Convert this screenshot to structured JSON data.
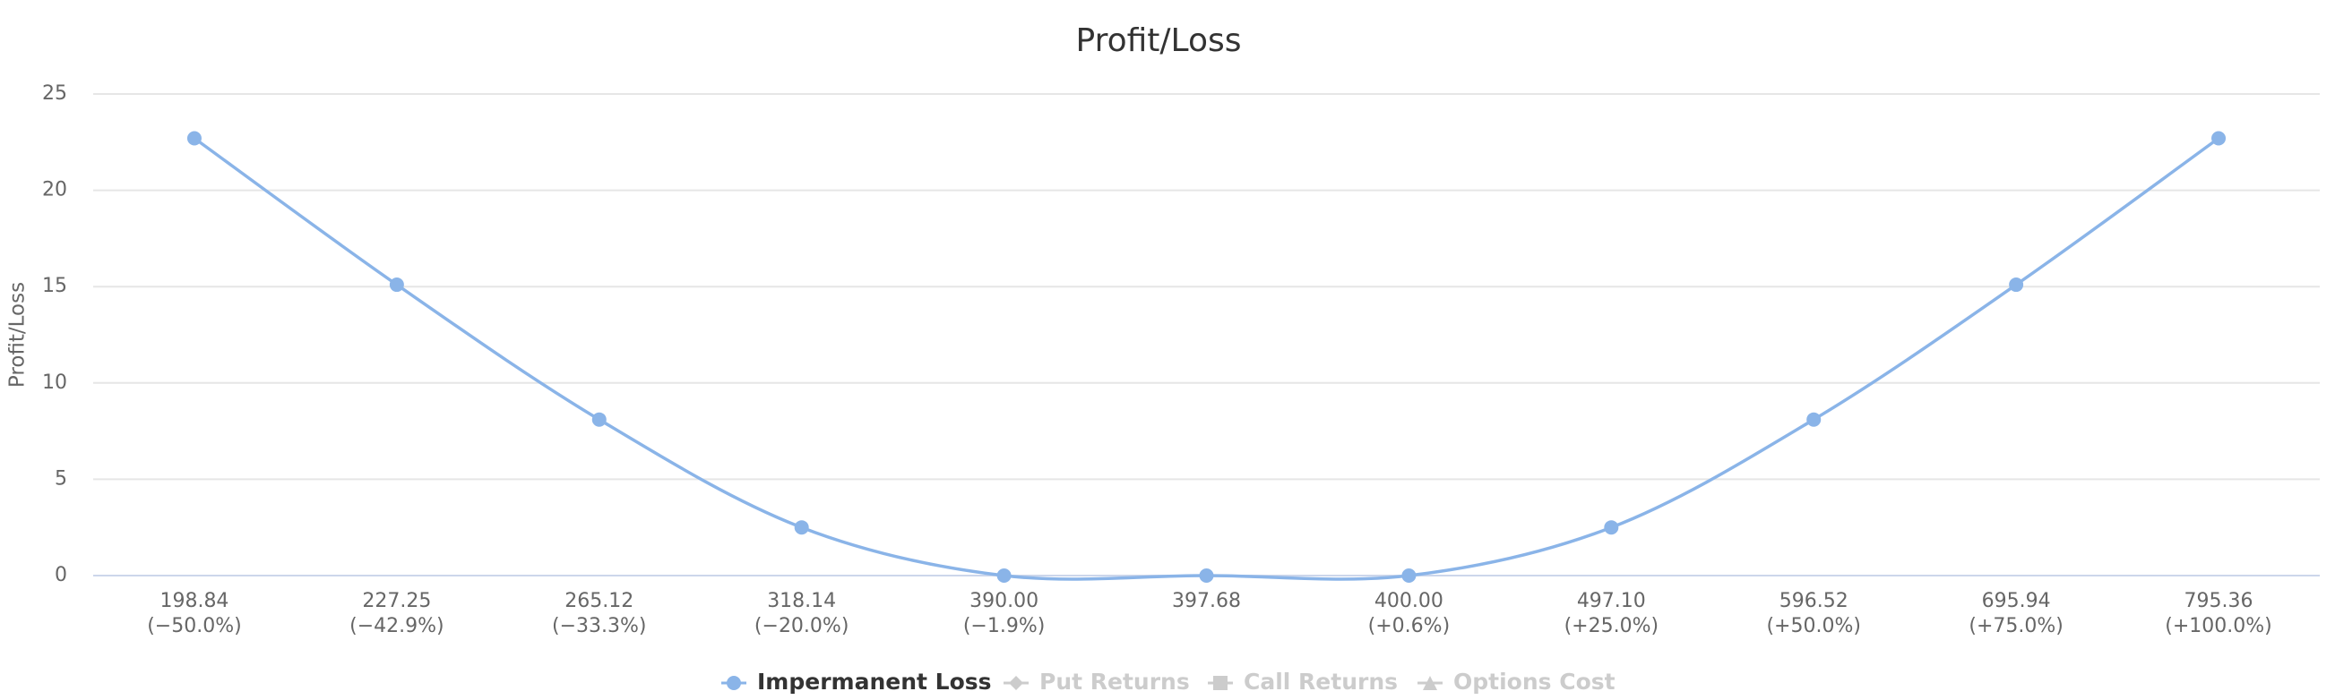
{
  "chart_data": {
    "type": "line",
    "title": "Profit/Loss",
    "y_label": "Profit/Loss",
    "categories": [
      "198.84",
      "227.25",
      "265.12",
      "318.14",
      "390.00",
      "397.68",
      "400.00",
      "497.10",
      "596.52",
      "695.94",
      "795.36"
    ],
    "category_changes": [
      "(−50.0%)",
      "(−42.9%)",
      "(−33.3%)",
      "(−20.0%)",
      "(−1.9%)",
      null,
      "(+0.6%)",
      "(+25.0%)",
      "(+50.0%)",
      "(+75.0%)",
      "(+100.0%)"
    ],
    "series": [
      {
        "name": "Impermanent Loss",
        "color": "#8ab4e8",
        "marker": "circle",
        "visible": true,
        "values": [
          22.7,
          15.1,
          8.1,
          2.5,
          0,
          0,
          0,
          2.5,
          8.1,
          15.1,
          22.7
        ]
      },
      {
        "name": "Put Returns",
        "color": "#cccccc",
        "marker": "diamond",
        "visible": false,
        "values": [
          null,
          null,
          null,
          null,
          null,
          null,
          null,
          null,
          null,
          null,
          null
        ]
      },
      {
        "name": "Call Returns",
        "color": "#cccccc",
        "marker": "square",
        "visible": false,
        "values": [
          null,
          null,
          null,
          null,
          null,
          null,
          null,
          null,
          null,
          null,
          null
        ]
      },
      {
        "name": "Options Cost",
        "color": "#cccccc",
        "marker": "triangle",
        "visible": false,
        "values": [
          null,
          null,
          null,
          null,
          null,
          null,
          null,
          null,
          null,
          null,
          null
        ]
      }
    ],
    "ylim": [
      0,
      25
    ],
    "yticks": [
      0,
      5,
      10,
      15,
      20,
      25
    ],
    "grid": true,
    "legend": "bottom"
  }
}
